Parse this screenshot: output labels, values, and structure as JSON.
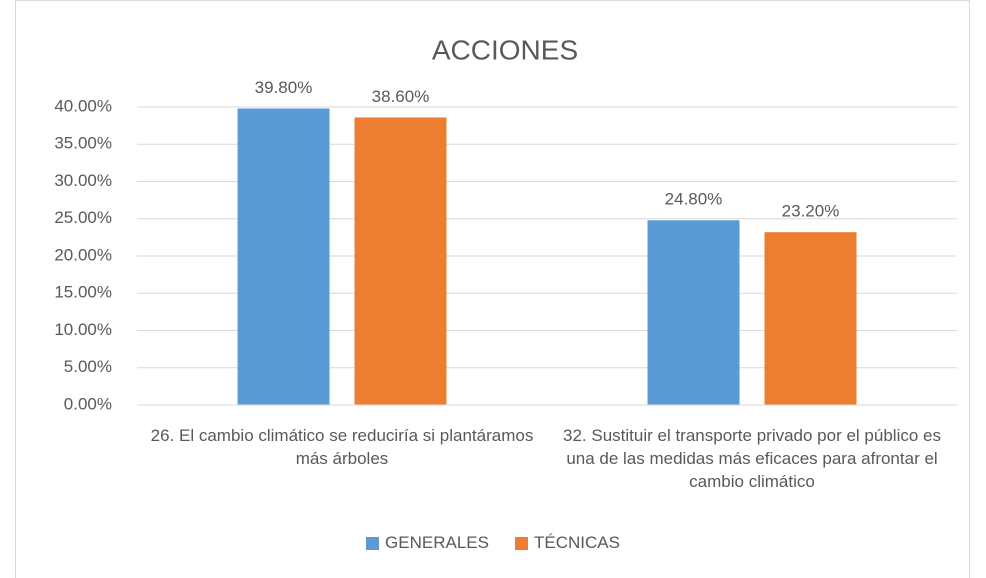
{
  "chart_data": {
    "type": "bar",
    "title": "ACCIONES",
    "categories": [
      "26. El cambio climático se reduciría si plantáramos más árboles",
      "32. Sustituir el transporte privado por el público es una de las medidas más eficaces para afrontar el cambio climático"
    ],
    "series": [
      {
        "name": "GENERALES",
        "color": "#5b9bd5",
        "values": [
          39.8,
          24.8
        ],
        "value_labels": [
          "39.80%",
          "24.80%"
        ]
      },
      {
        "name": "TÉCNICAS",
        "color": "#ed7d31",
        "values": [
          38.6,
          23.2
        ],
        "value_labels": [
          "38.60%",
          "23.20%"
        ]
      }
    ],
    "ylim": [
      0,
      40
    ],
    "yticks": [
      {
        "value": 0,
        "label": "0.00%"
      },
      {
        "value": 5,
        "label": "5.00%"
      },
      {
        "value": 10,
        "label": "10.00%"
      },
      {
        "value": 15,
        "label": "15.00%"
      },
      {
        "value": 20,
        "label": "20.00%"
      },
      {
        "value": 25,
        "label": "25.00%"
      },
      {
        "value": 30,
        "label": "30.00%"
      },
      {
        "value": 35,
        "label": "35.00%"
      },
      {
        "value": 40,
        "label": "40.00%"
      }
    ],
    "grid": true,
    "legend": "bottom"
  }
}
